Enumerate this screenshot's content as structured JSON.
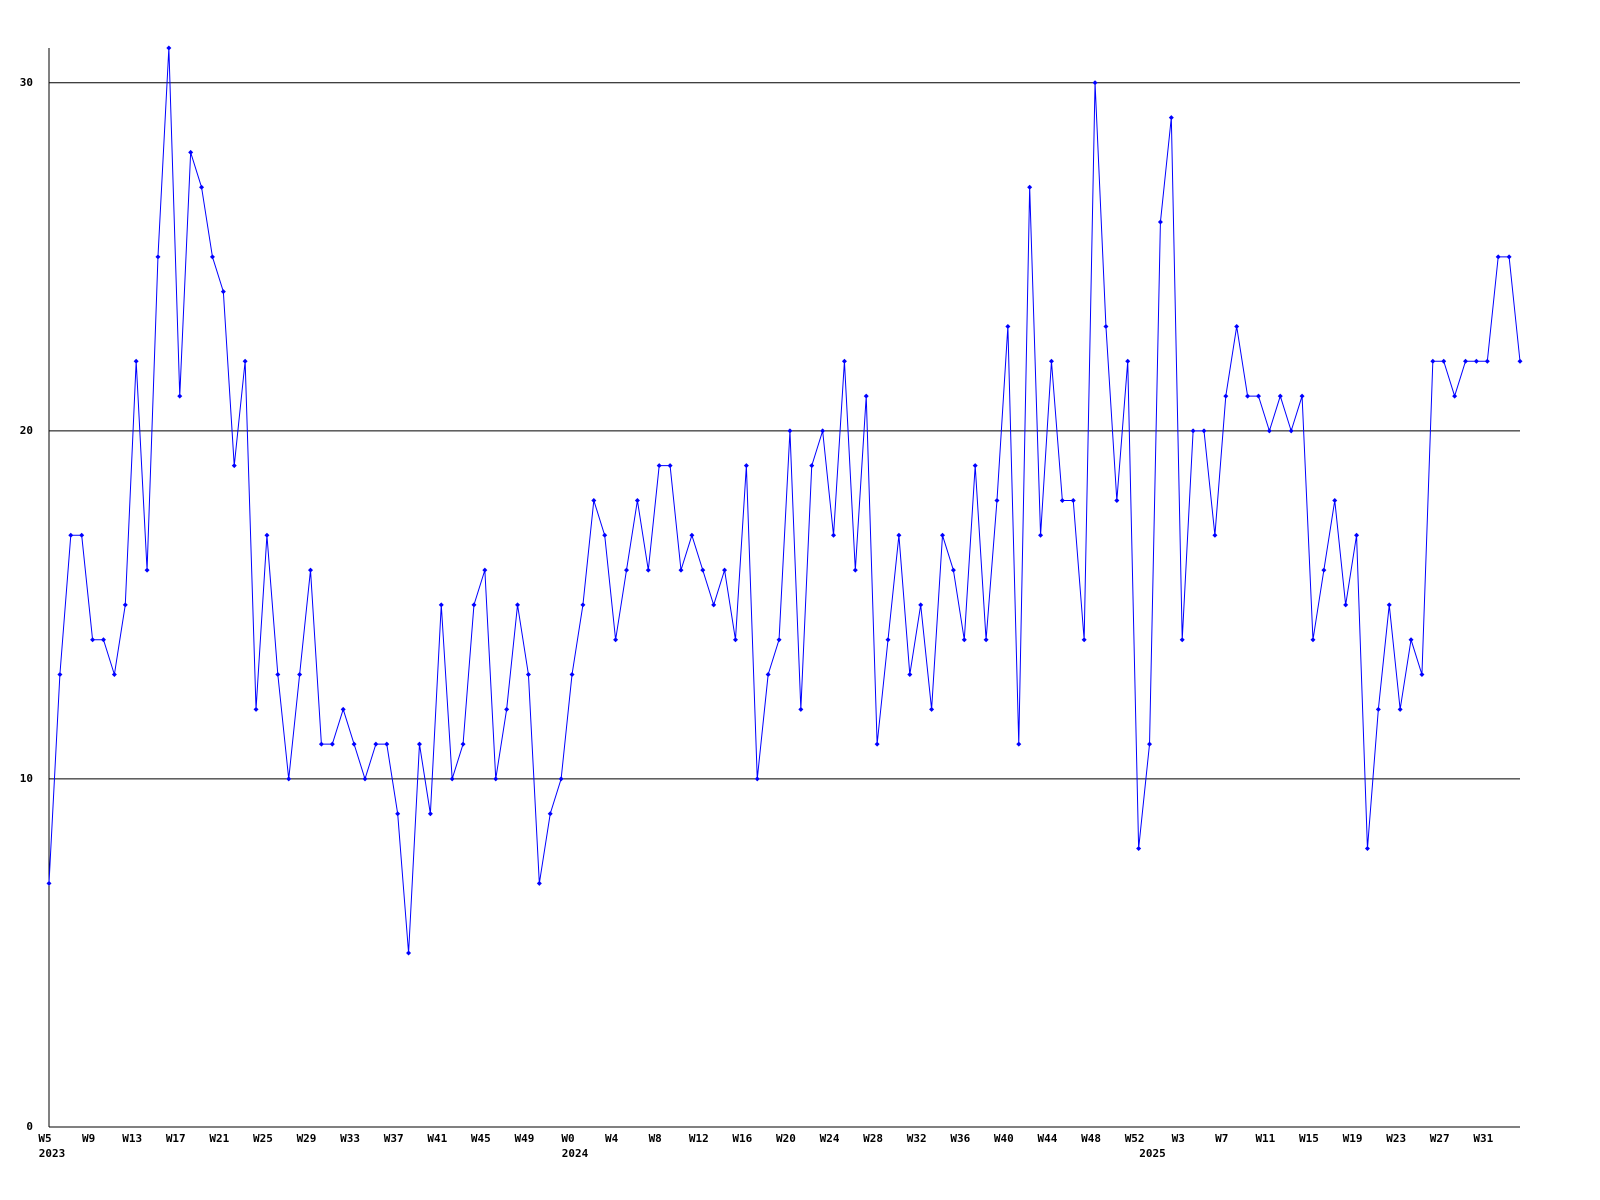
{
  "chart_data": {
    "type": "line",
    "categories": [
      "W5",
      null,
      null,
      null,
      "W9",
      null,
      null,
      null,
      "W13",
      null,
      null,
      null,
      "W17",
      null,
      null,
      null,
      "W21",
      null,
      null,
      null,
      "W25",
      null,
      null,
      null,
      "W29",
      null,
      null,
      null,
      "W33",
      null,
      null,
      null,
      "W37",
      null,
      null,
      null,
      "W41",
      null,
      null,
      null,
      "W45",
      null,
      null,
      null,
      "W49",
      null,
      null,
      null,
      "W0",
      null,
      null,
      null,
      "W4",
      null,
      null,
      null,
      "W8",
      null,
      null,
      null,
      "W12",
      null,
      null,
      null,
      "W16",
      null,
      null,
      null,
      "W20",
      null,
      null,
      null,
      "W24",
      null,
      null,
      null,
      "W28",
      null,
      null,
      null,
      "W32",
      null,
      null,
      null,
      "W36",
      null,
      null,
      null,
      "W40",
      null,
      null,
      null,
      "W44",
      null,
      null,
      null,
      "W48",
      null,
      null,
      null,
      "W52",
      null,
      null,
      null,
      "W3",
      null,
      null,
      null,
      "W7",
      null,
      null,
      null,
      "W11",
      null,
      null,
      null,
      "W15",
      null,
      null,
      null,
      "W19",
      null,
      null,
      null,
      "W23",
      null,
      null,
      null,
      "W27",
      null,
      null,
      null,
      "W31",
      null,
      null,
      null
    ],
    "year_labels": [
      "2023",
      null,
      null,
      null,
      null,
      null,
      null,
      null,
      null,
      null,
      null,
      null,
      null,
      null,
      null,
      null,
      null,
      null,
      null,
      null,
      null,
      null,
      null,
      null,
      null,
      null,
      null,
      null,
      null,
      null,
      null,
      null,
      null,
      null,
      null,
      null,
      null,
      null,
      null,
      null,
      null,
      null,
      null,
      null,
      null,
      null,
      null,
      null,
      "2024",
      null,
      null,
      null,
      null,
      null,
      null,
      null,
      null,
      null,
      null,
      null,
      null,
      null,
      null,
      null,
      null,
      null,
      null,
      null,
      null,
      null,
      null,
      null,
      null,
      null,
      null,
      null,
      null,
      null,
      null,
      null,
      null,
      null,
      null,
      null,
      null,
      null,
      null,
      null,
      null,
      null,
      null,
      null,
      null,
      null,
      null,
      null,
      null,
      null,
      null,
      null,
      null,
      "2025",
      null,
      null,
      null,
      null,
      null,
      null,
      null,
      null,
      null,
      null,
      null,
      null,
      null,
      null,
      null,
      null,
      null,
      null,
      null,
      null,
      null,
      null,
      null,
      null,
      null,
      null,
      null,
      null,
      null,
      null,
      null,
      null,
      null
    ],
    "series": [
      {
        "color": "#0000ff",
        "values": [
          7,
          13,
          17,
          17,
          14,
          14,
          13,
          15,
          22,
          16,
          25,
          31,
          21,
          28,
          27,
          25,
          24,
          19,
          22,
          12,
          17,
          13,
          10,
          13,
          16,
          11,
          11,
          12,
          11,
          10,
          11,
          11,
          9,
          5,
          11,
          9,
          15,
          10,
          11,
          15,
          16,
          10,
          12,
          15,
          13,
          7,
          9,
          10,
          13,
          15,
          18,
          17,
          14,
          16,
          18,
          16,
          19,
          19,
          16,
          17,
          16,
          15,
          16,
          14,
          19,
          10,
          13,
          14,
          20,
          12,
          19,
          20,
          17,
          22,
          16,
          21,
          11,
          14,
          17,
          13,
          15,
          12,
          17,
          16,
          14,
          19,
          14,
          18,
          23,
          11,
          27,
          17,
          22,
          18,
          18,
          14,
          30,
          23,
          18,
          22,
          8,
          11,
          26,
          29,
          14,
          20,
          20,
          17,
          21,
          23,
          21,
          21,
          20,
          21,
          20,
          21,
          14,
          16,
          18,
          15,
          17,
          8,
          12,
          15,
          12,
          14,
          13,
          22,
          22,
          21,
          22,
          22,
          22,
          25,
          25,
          22
        ]
      }
    ],
    "ylim": [
      0,
      31
    ],
    "yticks": [
      0,
      10,
      20,
      30
    ],
    "grid": true
  }
}
